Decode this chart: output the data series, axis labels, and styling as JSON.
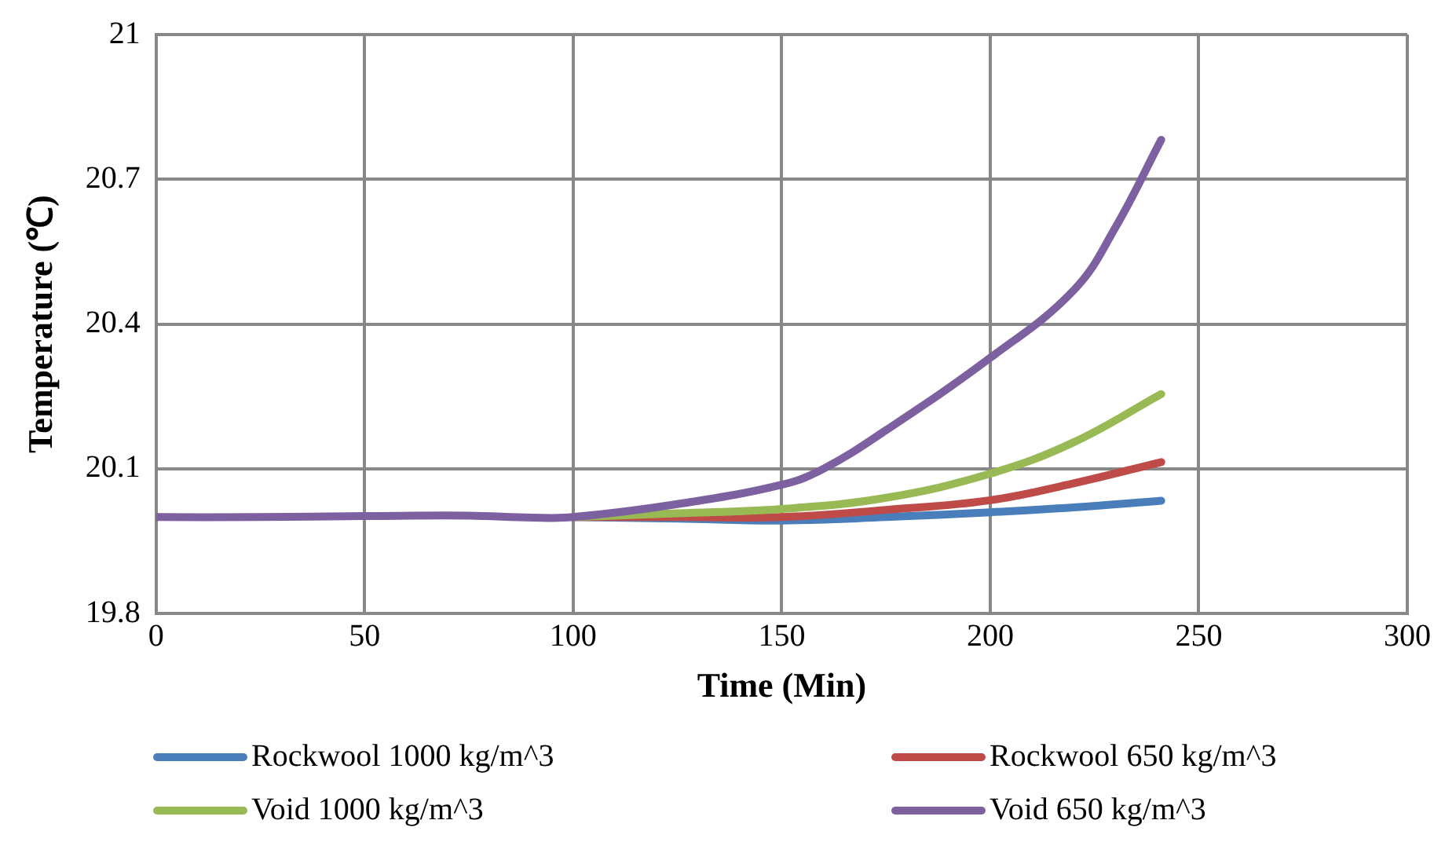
{
  "chart_data": {
    "type": "line",
    "xlabel": "Time (Min)",
    "ylabel": "Temperature (℃)",
    "xlim": [
      0,
      300
    ],
    "xticks": [
      0,
      50,
      100,
      150,
      200,
      250,
      300
    ],
    "ylim": [
      19.8,
      21
    ],
    "yticks": [
      19.8,
      20.1,
      20.4,
      20.7,
      21
    ],
    "grid": true,
    "legend": "bottom",
    "marker": "none",
    "line_style": "solid",
    "series": [
      {
        "name": "Rockwool 1000 kg/m^3",
        "color": "#4a7ebb",
        "x": [
          100,
          125,
          150,
          175,
          200,
          220,
          241
        ],
        "values": [
          20.0,
          19.997,
          19.993,
          20.0,
          20.01,
          20.02,
          20.034
        ]
      },
      {
        "name": "Rockwool 650 kg/m^3",
        "color": "#be4b48",
        "x": [
          100,
          125,
          150,
          175,
          200,
          220,
          241
        ],
        "values": [
          20.0,
          20.0,
          20.0,
          20.015,
          20.035,
          20.07,
          20.114
        ]
      },
      {
        "name": "Void 1000 kg/m^3",
        "color": "#98b954",
        "x": [
          100,
          125,
          150,
          175,
          200,
          220,
          241
        ],
        "values": [
          20.0,
          20.008,
          20.017,
          20.04,
          20.09,
          20.155,
          20.255
        ]
      },
      {
        "name": "Void 650 kg/m^3",
        "color": "#7d60a0",
        "x": [
          0,
          25,
          50,
          75,
          90,
          100,
          125,
          150,
          160,
          175,
          200,
          220,
          230,
          241
        ],
        "values": [
          20.0,
          20.0,
          20.002,
          20.003,
          19.999,
          20.0,
          20.027,
          20.067,
          20.1,
          20.18,
          20.33,
          20.47,
          20.6,
          20.782
        ]
      }
    ]
  }
}
